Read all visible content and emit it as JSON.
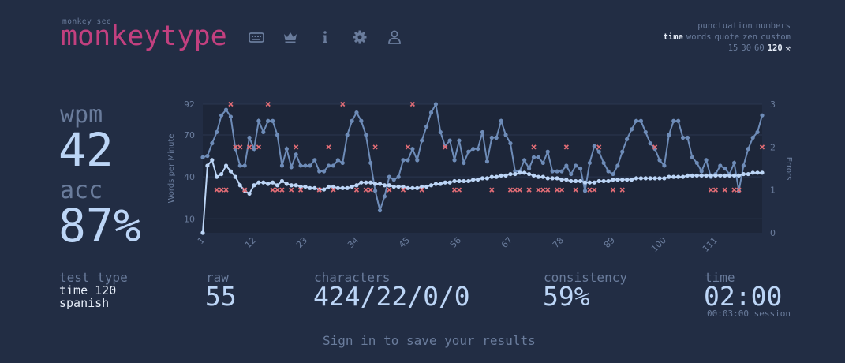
{
  "header": {
    "logo_small": "monkey see",
    "logo_text": "monkeytype",
    "nav_icons": [
      "keyboard-icon",
      "crown-icon",
      "info-icon",
      "gear-icon",
      "user-icon"
    ]
  },
  "config": {
    "row1": [
      "punctuation",
      "numbers"
    ],
    "row2": [
      "time",
      "words",
      "quote",
      "zen",
      "custom"
    ],
    "row2_active": "time",
    "row3": [
      "15",
      "30",
      "60",
      "120"
    ],
    "row3_active": "120"
  },
  "result": {
    "wpm_label": "wpm",
    "wpm": "42",
    "acc_label": "acc",
    "acc": "87%"
  },
  "stats": {
    "test_type_label": "test type",
    "test_type_line1": "time 120",
    "test_type_line2": "spanish",
    "raw_label": "raw",
    "raw": "55",
    "characters_label": "characters",
    "characters": "424/22/0/0",
    "consistency_label": "consistency",
    "consistency": "59%",
    "time_label": "time",
    "time": "02:00",
    "session": "00:03:00 session"
  },
  "footer": {
    "signin_link": "Sign in",
    "signin_rest": " to save your results"
  },
  "colors": {
    "background": "#222d44",
    "logo": "#c2407f",
    "raw_line": "#6e8cb8",
    "wpm_line": "#bcd5f6",
    "error_mark": "#e06c75"
  },
  "chart_data": {
    "type": "line",
    "ylabel": "Words per Minute",
    "y2label": "Errors",
    "ylim": [
      0,
      92
    ],
    "y2lim": [
      0,
      3
    ],
    "yticks": [
      10,
      40,
      70,
      92
    ],
    "y2ticks": [
      0,
      1,
      2,
      3
    ],
    "xlim": [
      1,
      121
    ],
    "xticks": [
      1,
      12,
      23,
      34,
      45,
      56,
      67,
      78,
      89,
      100,
      111
    ],
    "series": [
      {
        "name": "raw",
        "x": [
          1,
          2,
          3,
          4,
          5,
          6,
          7,
          8,
          9,
          10,
          11,
          12,
          13,
          14,
          15,
          16,
          17,
          18,
          19,
          20,
          21,
          22,
          23,
          24,
          25,
          26,
          27,
          28,
          29,
          30,
          31,
          32,
          33,
          34,
          35,
          36,
          37,
          38,
          39,
          40,
          41,
          42,
          43,
          44,
          45,
          46,
          47,
          48,
          49,
          50,
          51,
          52,
          53,
          54,
          55,
          56,
          57,
          58,
          59,
          60,
          61,
          62,
          63,
          64,
          65,
          66,
          67,
          68,
          69,
          70,
          71,
          72,
          73,
          74,
          75,
          76,
          77,
          78,
          79,
          80,
          81,
          82,
          83,
          84,
          85,
          86,
          87,
          88,
          89,
          90,
          91,
          92,
          93,
          94,
          95,
          96,
          97,
          98,
          99,
          100,
          101,
          102,
          103,
          104,
          105,
          106,
          107,
          108,
          109,
          110,
          111,
          112,
          113,
          114,
          115,
          116,
          117,
          118,
          119,
          120,
          121
        ],
        "values": [
          54,
          55,
          64,
          72,
          84,
          88,
          83,
          60,
          48,
          48,
          68,
          60,
          80,
          72,
          80,
          80,
          70,
          48,
          60,
          47,
          56,
          48,
          48,
          48,
          52,
          44,
          44,
          48,
          48,
          52,
          50,
          70,
          80,
          86,
          80,
          70,
          50,
          30,
          16,
          26,
          40,
          38,
          40,
          52,
          52,
          60,
          52,
          66,
          76,
          86,
          92,
          72,
          62,
          66,
          52,
          66,
          50,
          58,
          60,
          60,
          72,
          51,
          68,
          68,
          80,
          70,
          64,
          44,
          44,
          52,
          46,
          54,
          54,
          50,
          58,
          44,
          44,
          44,
          48,
          42,
          48,
          46,
          30,
          50,
          62,
          58,
          50,
          44,
          42,
          48,
          58,
          67,
          74,
          80,
          80,
          72,
          64,
          60,
          52,
          48,
          70,
          80,
          80,
          68,
          68,
          54,
          50,
          44,
          52,
          40,
          42,
          48,
          46,
          42,
          50,
          30,
          48,
          60,
          68,
          72,
          84
        ],
        "color": "#6e8cb8"
      },
      {
        "name": "wpm",
        "x": [
          1,
          2,
          3,
          4,
          5,
          6,
          7,
          8,
          9,
          10,
          11,
          12,
          13,
          14,
          15,
          16,
          17,
          18,
          19,
          20,
          21,
          22,
          23,
          24,
          25,
          26,
          27,
          28,
          29,
          30,
          31,
          32,
          33,
          34,
          35,
          36,
          37,
          38,
          39,
          40,
          41,
          42,
          43,
          44,
          45,
          46,
          47,
          48,
          49,
          50,
          51,
          52,
          53,
          54,
          55,
          56,
          57,
          58,
          59,
          60,
          61,
          62,
          63,
          64,
          65,
          66,
          67,
          68,
          69,
          70,
          71,
          72,
          73,
          74,
          75,
          76,
          77,
          78,
          79,
          80,
          81,
          82,
          83,
          84,
          85,
          86,
          87,
          88,
          89,
          90,
          91,
          92,
          93,
          94,
          95,
          96,
          97,
          98,
          99,
          100,
          101,
          102,
          103,
          104,
          105,
          106,
          107,
          108,
          109,
          110,
          111,
          112,
          113,
          114,
          115,
          116,
          117,
          118,
          119,
          120,
          121
        ],
        "values": [
          0,
          48,
          52,
          40,
          42,
          48,
          44,
          40,
          34,
          30,
          28,
          34,
          36,
          36,
          35,
          36,
          34,
          37,
          35,
          34,
          34,
          33,
          33,
          32,
          32,
          31,
          31,
          33,
          33,
          32,
          32,
          32,
          33,
          34,
          36,
          36,
          36,
          35,
          35,
          34,
          34,
          33,
          33,
          33,
          32,
          32,
          32,
          33,
          33,
          34,
          35,
          35,
          36,
          36,
          37,
          37,
          37,
          37,
          38,
          38,
          39,
          39,
          40,
          40,
          41,
          41,
          42,
          42,
          43,
          43,
          42,
          41,
          40,
          40,
          39,
          39,
          39,
          38,
          38,
          37,
          37,
          37,
          36,
          36,
          36,
          37,
          37,
          37,
          38,
          38,
          38,
          38,
          38,
          39,
          39,
          39,
          39,
          39,
          39,
          39,
          40,
          40,
          40,
          40,
          41,
          41,
          41,
          41,
          41,
          41,
          41,
          41,
          41,
          41,
          41,
          41,
          42,
          42,
          43,
          43,
          43
        ],
        "color": "#bcd5f6"
      },
      {
        "name": "errors",
        "x": [
          4,
          5,
          6,
          7,
          8,
          9,
          10,
          11,
          13,
          15,
          16,
          17,
          18,
          20,
          21,
          22,
          26,
          28,
          29,
          31,
          34,
          36,
          37,
          38,
          41,
          44,
          45,
          46,
          48,
          53,
          55,
          56,
          63,
          67,
          68,
          69,
          71,
          72,
          73,
          74,
          75,
          77,
          78,
          79,
          81,
          84,
          85,
          86,
          89,
          91,
          98,
          110,
          111,
          113,
          115,
          116,
          121
        ],
        "values": [
          1,
          1,
          1,
          3,
          2,
          2,
          1,
          2,
          2,
          3,
          1,
          1,
          1,
          1,
          2,
          1,
          1,
          2,
          1,
          3,
          1,
          1,
          1,
          2,
          1,
          1,
          2,
          3,
          1,
          2,
          1,
          1,
          1,
          1,
          1,
          1,
          1,
          2,
          1,
          1,
          1,
          1,
          1,
          2,
          1,
          1,
          1,
          2,
          1,
          1,
          2,
          1,
          1,
          1,
          1,
          1,
          2
        ],
        "color": "#e06c75"
      }
    ]
  }
}
